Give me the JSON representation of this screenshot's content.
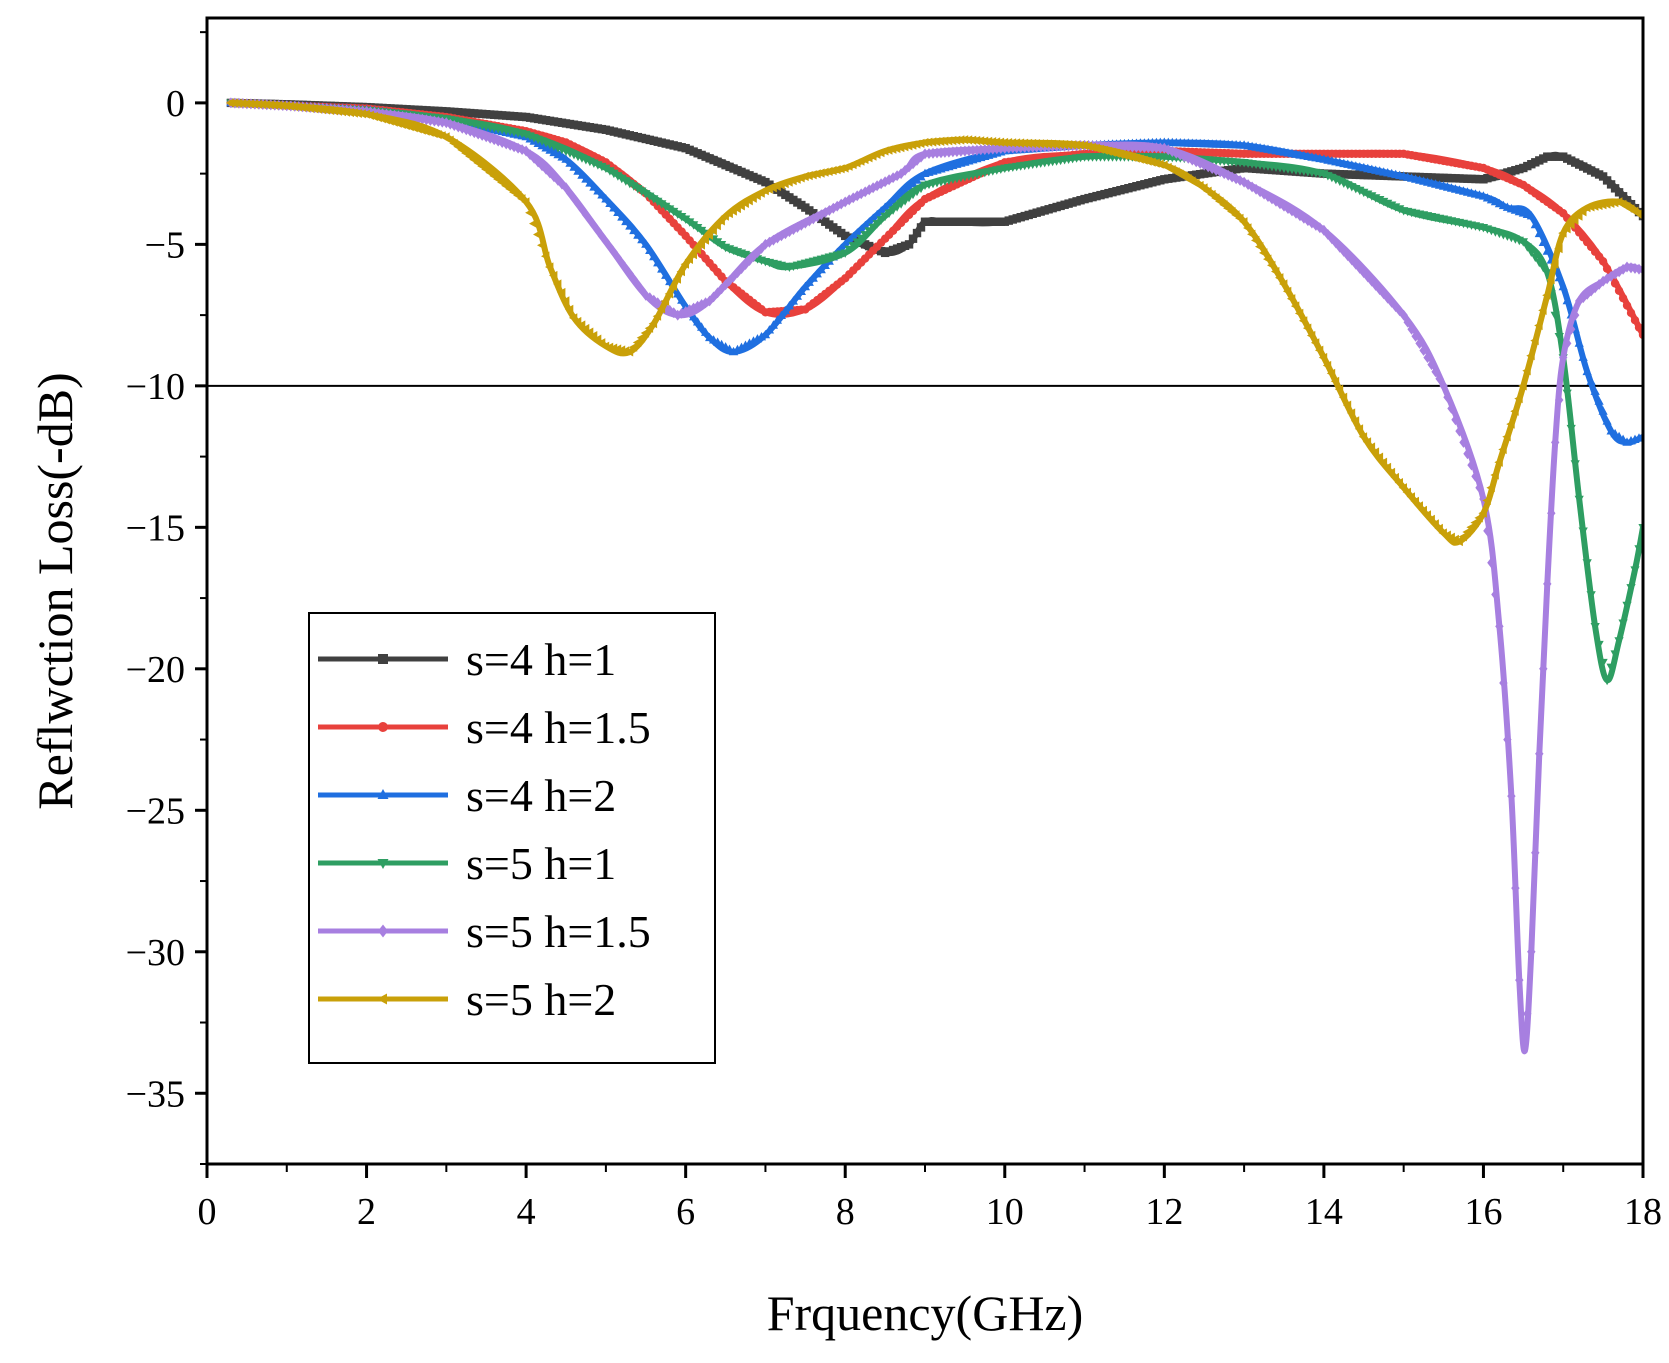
{
  "chart_data": {
    "type": "line",
    "title": "",
    "xlabel": "Frquency(GHz)",
    "ylabel": "Reflwction Loss(-dB)",
    "xlim": [
      0,
      18
    ],
    "ylim": [
      -37.5,
      3
    ],
    "xticks": [
      0,
      2,
      4,
      6,
      8,
      10,
      12,
      14,
      16,
      18
    ],
    "xtick_labels": [
      "0",
      "2",
      "4",
      "6",
      "8",
      "10",
      "12",
      "14",
      "16",
      "18"
    ],
    "yticks": [
      0,
      -5,
      -10,
      -15,
      -20,
      -25,
      -30,
      -35
    ],
    "ytick_labels": [
      "0",
      "−5",
      "−10",
      "−15",
      "−20",
      "−25",
      "−30",
      "−35"
    ],
    "reference_line": {
      "y": -10,
      "color": "#000000"
    },
    "legend_position": "bottom-left",
    "series": [
      {
        "name": "s=4 h=1",
        "color": "#404040",
        "marker": "square",
        "x": [
          0.3,
          1,
          2,
          3,
          4,
          5,
          6,
          7,
          7.5,
          8,
          8.5,
          8.8,
          9,
          9.3,
          10,
          11,
          12,
          13,
          14,
          15,
          16,
          16.5,
          16.8,
          17,
          17.5,
          18
        ],
        "y": [
          0,
          -0.05,
          -0.15,
          -0.3,
          -0.5,
          -0.95,
          -1.6,
          -2.8,
          -3.7,
          -4.7,
          -5.3,
          -5.0,
          -4.2,
          -4.2,
          -4.2,
          -3.4,
          -2.7,
          -2.3,
          -2.5,
          -2.6,
          -2.7,
          -2.3,
          -1.9,
          -1.9,
          -2.6,
          -4.0
        ]
      },
      {
        "name": "s=4 h=1.5",
        "color": "#e8413c",
        "marker": "circle",
        "x": [
          0.3,
          1,
          2,
          3,
          4,
          4.5,
          5,
          5.5,
          6,
          6.5,
          7,
          7.5,
          8,
          8.5,
          9,
          10,
          11,
          12,
          13,
          14,
          15,
          16,
          16.5,
          17,
          17.5,
          18
        ],
        "y": [
          0,
          -0.1,
          -0.2,
          -0.5,
          -1.0,
          -1.4,
          -2.1,
          -3.2,
          -4.7,
          -6.3,
          -7.4,
          -7.3,
          -6.2,
          -4.8,
          -3.4,
          -2.1,
          -1.8,
          -1.7,
          -1.8,
          -1.8,
          -1.8,
          -2.3,
          -2.9,
          -3.9,
          -5.6,
          -8.2
        ]
      },
      {
        "name": "s=4 h=2",
        "color": "#1f6fe0",
        "marker": "triangle-up",
        "x": [
          0.3,
          1,
          2,
          3,
          4,
          4.5,
          5,
          5.5,
          6,
          6.3,
          6.6,
          7,
          7.5,
          8,
          8.5,
          9,
          10,
          11,
          12,
          13,
          14,
          15,
          16,
          16.3,
          16.6,
          17,
          17.3,
          17.6,
          17.8,
          18
        ],
        "y": [
          0,
          -0.1,
          -0.25,
          -0.6,
          -1.2,
          -2.0,
          -3.4,
          -5.0,
          -7.2,
          -8.3,
          -8.8,
          -8.2,
          -6.5,
          -5.0,
          -3.7,
          -2.5,
          -1.7,
          -1.5,
          -1.4,
          -1.5,
          -2.0,
          -2.6,
          -3.3,
          -3.7,
          -4.0,
          -6.5,
          -9.5,
          -11.6,
          -12.0,
          -11.8
        ]
      },
      {
        "name": "s=5 h=1",
        "color": "#2e9e62",
        "marker": "triangle-down",
        "x": [
          0.3,
          1,
          2,
          3,
          4,
          5,
          6,
          6.5,
          7,
          7.3,
          8,
          8.5,
          9,
          10,
          11,
          12,
          13,
          14,
          15,
          16,
          16.5,
          16.8,
          17,
          17.2,
          17.4,
          17.55,
          17.7,
          17.9,
          18
        ],
        "y": [
          0,
          -0.1,
          -0.25,
          -0.55,
          -1.1,
          -2.3,
          -4.1,
          -5.1,
          -5.6,
          -5.8,
          -5.3,
          -4.0,
          -2.9,
          -2.3,
          -1.9,
          -1.9,
          -2.1,
          -2.5,
          -3.8,
          -4.4,
          -4.9,
          -6.0,
          -9.0,
          -14.0,
          -18.5,
          -20.4,
          -19.0,
          -16.5,
          -15.0
        ]
      },
      {
        "name": "s=5 h=1.5",
        "color": "#a77fe0",
        "marker": "diamond",
        "x": [
          0.3,
          1,
          2,
          3,
          4,
          4.5,
          5,
          5.5,
          5.9,
          6.3,
          7,
          8,
          8.7,
          9,
          10,
          11,
          12,
          13,
          14,
          15,
          15.5,
          16,
          16.2,
          16.35,
          16.45,
          16.52,
          16.6,
          16.7,
          16.8,
          16.9,
          17,
          17.2,
          17.5,
          17.8,
          18
        ],
        "y": [
          0,
          -0.1,
          -0.3,
          -0.7,
          -1.7,
          -3.0,
          -4.9,
          -6.8,
          -7.5,
          -7.0,
          -5.0,
          -3.5,
          -2.5,
          -1.8,
          -1.6,
          -1.5,
          -1.6,
          -2.8,
          -4.5,
          -7.5,
          -10.0,
          -14.0,
          -18.5,
          -24.5,
          -31.0,
          -33.5,
          -30.0,
          -23.0,
          -17.0,
          -12.0,
          -9.0,
          -7.0,
          -6.3,
          -5.8,
          -5.9
        ]
      },
      {
        "name": "s=5 h=2",
        "color": "#c9a009",
        "marker": "triangle-left",
        "x": [
          0.3,
          1,
          2,
          3,
          4,
          4.3,
          4.6,
          5,
          5.3,
          5.6,
          6,
          6.5,
          7,
          7.5,
          8,
          8.5,
          9,
          9.5,
          10,
          11,
          12,
          12.5,
          13,
          13.5,
          14,
          14.5,
          15,
          15.5,
          15.7,
          16,
          16.2,
          16.5,
          16.8,
          17,
          17.3,
          17.7,
          18
        ],
        "y": [
          0,
          -0.1,
          -0.4,
          -1.2,
          -3.5,
          -5.8,
          -7.6,
          -8.6,
          -8.8,
          -7.8,
          -5.7,
          -4.0,
          -3.1,
          -2.6,
          -2.3,
          -1.7,
          -1.4,
          -1.3,
          -1.4,
          -1.5,
          -2.2,
          -3.0,
          -4.2,
          -6.4,
          -9.0,
          -11.8,
          -13.6,
          -15.2,
          -15.5,
          -14.5,
          -12.7,
          -10.0,
          -6.8,
          -4.6,
          -3.7,
          -3.5,
          -4.0
        ]
      }
    ]
  }
}
